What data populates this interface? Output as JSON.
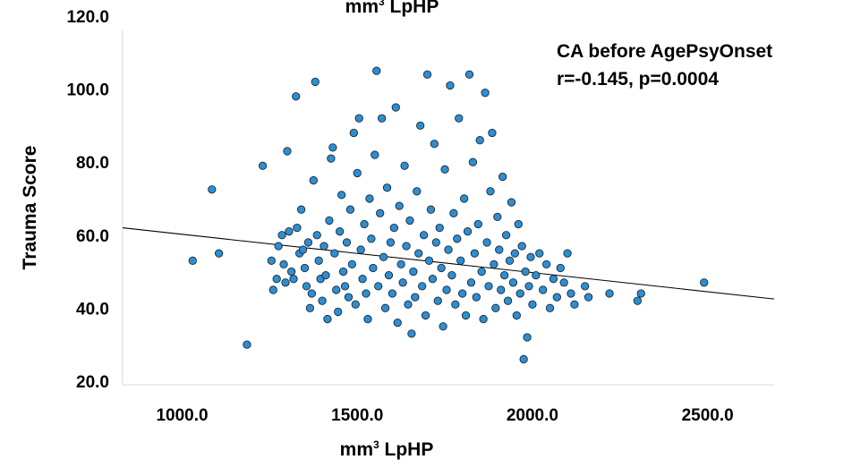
{
  "chart_data": {
    "type": "scatter",
    "top_caption": {
      "prefix": "mm",
      "sup": "3",
      "suffix": "  LpHP"
    },
    "xlabel": {
      "prefix": "mm",
      "sup": "3",
      "suffix": "  LpHP"
    },
    "ylabel": "Trauma Score",
    "xlim": [
      830,
      2690
    ],
    "ylim": [
      19,
      120
    ],
    "x_ticks": [
      {
        "value": 1000,
        "label": "1000.0"
      },
      {
        "value": 1500,
        "label": "1500.0"
      },
      {
        "value": 2000,
        "label": "2000.0"
      },
      {
        "value": 2500,
        "label": "2500.0"
      }
    ],
    "y_ticks": [
      {
        "value": 20,
        "label": "20.0"
      },
      {
        "value": 40,
        "label": "40.0"
      },
      {
        "value": 60,
        "label": "60.0"
      },
      {
        "value": 80,
        "label": "80.0"
      },
      {
        "value": 100,
        "label": "100.0"
      },
      {
        "value": 120,
        "label": "120.0"
      }
    ],
    "annotation": {
      "line1": "CA before AgePsyOnset",
      "line2": "r=-0.145, p=0.0004"
    },
    "fit_line": {
      "x": [
        830,
        2690
      ],
      "y": [
        62.0,
        42.5
      ]
    },
    "grid": false,
    "colors": {
      "point_fill": "#2e8ecf",
      "point_stroke": "#1a2a3a",
      "line": "#000000"
    },
    "points": [
      [
        1030,
        53
      ],
      [
        1085,
        72.5
      ],
      [
        1105,
        55
      ],
      [
        1185,
        30
      ],
      [
        1230,
        79
      ],
      [
        1255,
        53
      ],
      [
        1260,
        45
      ],
      [
        1270,
        48
      ],
      [
        1275,
        57
      ],
      [
        1285,
        60
      ],
      [
        1290,
        52
      ],
      [
        1295,
        47
      ],
      [
        1300,
        83
      ],
      [
        1305,
        61
      ],
      [
        1312,
        50
      ],
      [
        1318,
        48
      ],
      [
        1325,
        98
      ],
      [
        1328,
        62
      ],
      [
        1335,
        55
      ],
      [
        1340,
        67
      ],
      [
        1345,
        56
      ],
      [
        1350,
        51
      ],
      [
        1355,
        46
      ],
      [
        1360,
        58
      ],
      [
        1365,
        40
      ],
      [
        1370,
        44
      ],
      [
        1375,
        75
      ],
      [
        1380,
        102
      ],
      [
        1385,
        60
      ],
      [
        1390,
        53
      ],
      [
        1395,
        48
      ],
      [
        1400,
        42
      ],
      [
        1405,
        57
      ],
      [
        1410,
        49
      ],
      [
        1415,
        37
      ],
      [
        1420,
        64
      ],
      [
        1425,
        81
      ],
      [
        1430,
        84
      ],
      [
        1435,
        55
      ],
      [
        1440,
        45
      ],
      [
        1445,
        39
      ],
      [
        1450,
        61
      ],
      [
        1455,
        71
      ],
      [
        1460,
        50
      ],
      [
        1465,
        46
      ],
      [
        1470,
        58
      ],
      [
        1475,
        43
      ],
      [
        1480,
        67
      ],
      [
        1485,
        52
      ],
      [
        1490,
        88
      ],
      [
        1495,
        41
      ],
      [
        1500,
        77
      ],
      [
        1505,
        92
      ],
      [
        1510,
        56
      ],
      [
        1515,
        48
      ],
      [
        1520,
        63
      ],
      [
        1525,
        44
      ],
      [
        1530,
        37
      ],
      [
        1535,
        70
      ],
      [
        1540,
        59
      ],
      [
        1545,
        51
      ],
      [
        1550,
        82
      ],
      [
        1555,
        105
      ],
      [
        1560,
        46
      ],
      [
        1565,
        66
      ],
      [
        1570,
        92
      ],
      [
        1575,
        54
      ],
      [
        1580,
        40
      ],
      [
        1585,
        73
      ],
      [
        1590,
        49
      ],
      [
        1595,
        58
      ],
      [
        1600,
        44
      ],
      [
        1605,
        62
      ],
      [
        1610,
        95
      ],
      [
        1615,
        36
      ],
      [
        1620,
        68
      ],
      [
        1625,
        52
      ],
      [
        1630,
        47
      ],
      [
        1635,
        79
      ],
      [
        1640,
        57
      ],
      [
        1645,
        41
      ],
      [
        1650,
        64
      ],
      [
        1655,
        33
      ],
      [
        1660,
        50
      ],
      [
        1665,
        43
      ],
      [
        1670,
        72
      ],
      [
        1675,
        55
      ],
      [
        1680,
        90
      ],
      [
        1685,
        46
      ],
      [
        1690,
        60
      ],
      [
        1695,
        38
      ],
      [
        1700,
        104
      ],
      [
        1705,
        53
      ],
      [
        1710,
        67
      ],
      [
        1715,
        48
      ],
      [
        1720,
        85
      ],
      [
        1725,
        58
      ],
      [
        1730,
        42
      ],
      [
        1735,
        62
      ],
      [
        1740,
        51
      ],
      [
        1745,
        35
      ],
      [
        1750,
        78
      ],
      [
        1755,
        45
      ],
      [
        1760,
        56
      ],
      [
        1765,
        101
      ],
      [
        1770,
        49
      ],
      [
        1775,
        66
      ],
      [
        1780,
        41
      ],
      [
        1785,
        59
      ],
      [
        1790,
        92
      ],
      [
        1795,
        53
      ],
      [
        1800,
        44
      ],
      [
        1805,
        70
      ],
      [
        1810,
        38
      ],
      [
        1815,
        61
      ],
      [
        1820,
        104
      ],
      [
        1825,
        47
      ],
      [
        1830,
        80
      ],
      [
        1835,
        55
      ],
      [
        1840,
        43
      ],
      [
        1845,
        63
      ],
      [
        1850,
        86
      ],
      [
        1855,
        50
      ],
      [
        1860,
        37
      ],
      [
        1865,
        99
      ],
      [
        1870,
        58
      ],
      [
        1875,
        46
      ],
      [
        1880,
        72
      ],
      [
        1885,
        88
      ],
      [
        1890,
        52
      ],
      [
        1895,
        40
      ],
      [
        1900,
        65
      ],
      [
        1905,
        56
      ],
      [
        1910,
        45
      ],
      [
        1915,
        76
      ],
      [
        1920,
        49
      ],
      [
        1925,
        60
      ],
      [
        1930,
        42
      ],
      [
        1935,
        53
      ],
      [
        1940,
        69
      ],
      [
        1945,
        47
      ],
      [
        1950,
        55
      ],
      [
        1955,
        38
      ],
      [
        1960,
        63
      ],
      [
        1965,
        44
      ],
      [
        1970,
        57
      ],
      [
        1975,
        26
      ],
      [
        1980,
        50
      ],
      [
        1985,
        32
      ],
      [
        1990,
        46
      ],
      [
        1995,
        54
      ],
      [
        2000,
        41
      ],
      [
        2010,
        49
      ],
      [
        2020,
        55
      ],
      [
        2030,
        45
      ],
      [
        2040,
        52
      ],
      [
        2050,
        40
      ],
      [
        2060,
        48
      ],
      [
        2070,
        43
      ],
      [
        2080,
        51
      ],
      [
        2090,
        47
      ],
      [
        2100,
        55
      ],
      [
        2110,
        44
      ],
      [
        2120,
        41
      ],
      [
        2150,
        46
      ],
      [
        2160,
        43
      ],
      [
        2220,
        44
      ],
      [
        2300,
        42
      ],
      [
        2310,
        44
      ],
      [
        2490,
        47
      ]
    ]
  }
}
